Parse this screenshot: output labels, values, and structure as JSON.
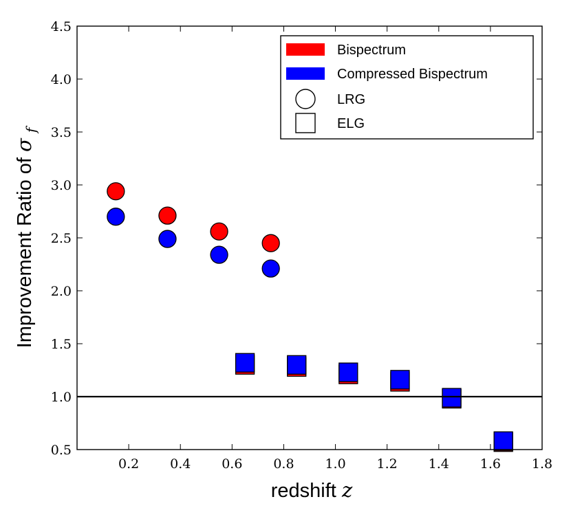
{
  "chart_data": {
    "type": "scatter",
    "xlabel": "redshift",
    "xlabel_symbol": "z",
    "ylabel": "Improvement Ratio of",
    "ylabel_symbol": "σ",
    "ylabel_subscript": "f",
    "xlim": [
      0.0,
      1.8
    ],
    "ylim": [
      0.5,
      4.5
    ],
    "xticks": [
      0.2,
      0.4,
      0.6,
      0.8,
      1.0,
      1.2,
      1.4,
      1.6,
      1.8
    ],
    "xtick_labels": [
      "0.2",
      "0.4",
      "0.6",
      "0.8",
      "1.0",
      "1.2",
      "1.4",
      "1.6",
      "1.8"
    ],
    "yticks": [
      0.5,
      1.0,
      1.5,
      2.0,
      2.5,
      3.0,
      3.5,
      4.0,
      4.5
    ],
    "ytick_labels": [
      "0.5",
      "1.0",
      "1.5",
      "2.0",
      "2.5",
      "3.0",
      "3.5",
      "4.0",
      "4.5"
    ],
    "reference_line": {
      "y": 1.0,
      "color": "#000000"
    },
    "legend_position": "top-right",
    "legend": [
      {
        "label": "Bispectrum",
        "kind": "color",
        "color": "#ff0000"
      },
      {
        "label": "Compressed Bispectrum",
        "kind": "color",
        "color": "#0000ff"
      },
      {
        "label": "LRG",
        "kind": "marker",
        "marker": "circle"
      },
      {
        "label": "ELG",
        "kind": "marker",
        "marker": "square"
      }
    ],
    "series": [
      {
        "name": "Bispectrum LRG",
        "color": "#ff0000",
        "marker": "circle",
        "x": [
          0.15,
          0.35,
          0.55,
          0.75
        ],
        "y": [
          2.94,
          2.71,
          2.56,
          2.45
        ]
      },
      {
        "name": "Compressed Bispectrum LRG",
        "color": "#0000ff",
        "marker": "circle",
        "x": [
          0.15,
          0.35,
          0.55,
          0.75
        ],
        "y": [
          2.7,
          2.49,
          2.34,
          2.21
        ]
      },
      {
        "name": "Bispectrum ELG",
        "color": "#ff0000",
        "marker": "square",
        "x": [
          0.65,
          0.85,
          1.05,
          1.25,
          1.45,
          1.65
        ],
        "y": [
          1.3,
          1.28,
          1.21,
          1.14,
          0.98,
          0.57
        ]
      },
      {
        "name": "Compressed Bispectrum ELG",
        "color": "#0000ff",
        "marker": "square",
        "x": [
          0.65,
          0.85,
          1.05,
          1.25,
          1.45,
          1.65
        ],
        "y": [
          1.32,
          1.3,
          1.23,
          1.16,
          0.99,
          0.58
        ]
      }
    ]
  }
}
